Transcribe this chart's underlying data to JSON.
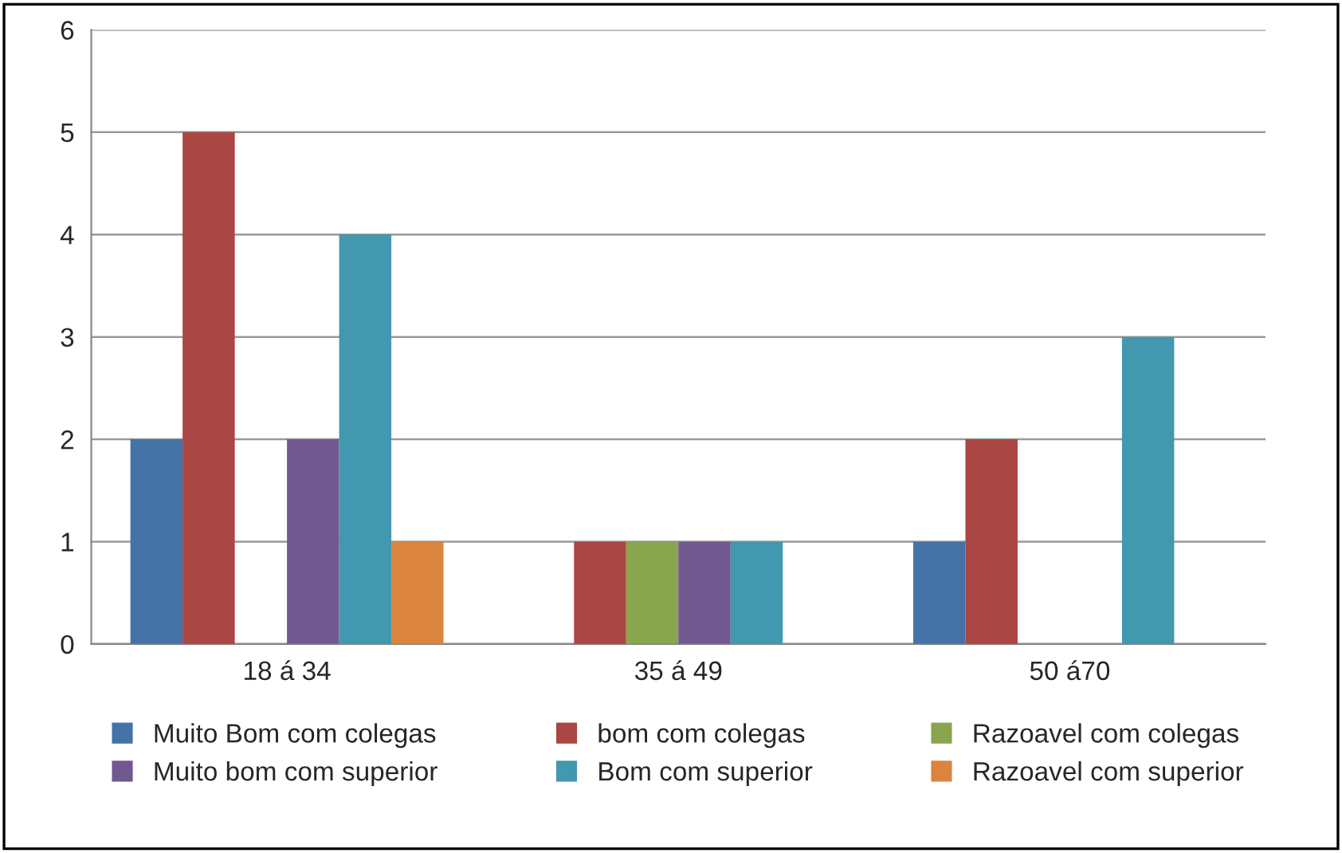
{
  "chart_data": {
    "type": "bar",
    "categories": [
      "18 á 34",
      "35 á 49",
      "50 á70"
    ],
    "series": [
      {
        "name": "Muito Bom com colegas",
        "color": "#4572a7",
        "values": [
          2,
          0,
          1
        ]
      },
      {
        "name": "bom com colegas",
        "color": "#aa4643",
        "values": [
          5,
          1,
          2
        ]
      },
      {
        "name": "Razoavel com colegas",
        "color": "#89a54e",
        "values": [
          0,
          1,
          0
        ]
      },
      {
        "name": "Muito bom com superior",
        "color": "#71588f",
        "values": [
          2,
          1,
          0
        ]
      },
      {
        "name": "Bom com superior",
        "color": "#4198af",
        "values": [
          4,
          1,
          3
        ]
      },
      {
        "name": "Razoavel com superior",
        "color": "#db843d",
        "values": [
          1,
          0,
          0
        ]
      }
    ],
    "ylim": [
      0,
      6
    ],
    "yticks": [
      0,
      1,
      2,
      3,
      4,
      5,
      6
    ],
    "grid": "y",
    "legend": "bottom"
  }
}
